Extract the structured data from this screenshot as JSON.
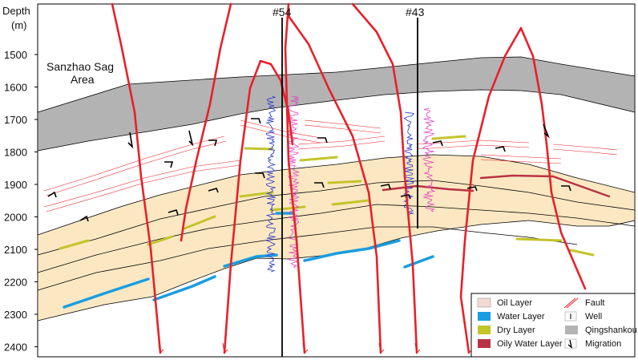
{
  "axis": {
    "title": "Depth",
    "unit": "(m)",
    "ticks": [
      "1500",
      "1600",
      "1700",
      "1800",
      "1900",
      "2000",
      "2100",
      "2200",
      "2300",
      "2400"
    ],
    "tick_values": [
      1500,
      1600,
      1700,
      1800,
      1900,
      2000,
      2100,
      2200,
      2300,
      2400
    ]
  },
  "area_label": [
    "Sanzhao Sag",
    "Area"
  ],
  "wells": [
    {
      "name": "#54"
    },
    {
      "name": "#43"
    }
  ],
  "legend": {
    "items": [
      {
        "label": "Oil Layer",
        "color": "#f2d9d4"
      },
      {
        "label": "Fault",
        "color": "#e8202a"
      },
      {
        "label": "Water Layer",
        "color": "#1a9de0"
      },
      {
        "label": "Well",
        "color": "#000000"
      },
      {
        "label": "Dry Layer",
        "color": "#c3c42a"
      },
      {
        "label": "Qingshankou",
        "color": "#b3b3b3"
      },
      {
        "label": "Oily Water Layer",
        "color": "#b83245"
      },
      {
        "label": "Migration",
        "color": "#000000"
      }
    ]
  },
  "colors": {
    "fault": "#e8202a",
    "qingshankou": "#b3b3b3",
    "reservoir": "#fbe8c2",
    "oil": "#f2d9d4",
    "water": "#1a9de0",
    "dry": "#c3c42a",
    "oily_water": "#b83245",
    "log_blue": "#2233cc",
    "log_pink": "#e040c0"
  }
}
